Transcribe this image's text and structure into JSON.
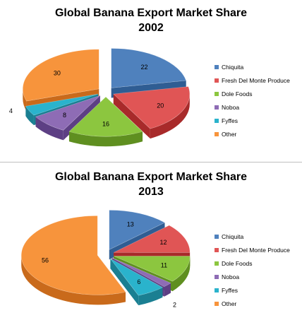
{
  "chart_data": [
    {
      "type": "pie",
      "title": "Global Banana Export Market Share",
      "subtitle": "2002",
      "categories": [
        "Chiquita",
        "Fresh Del Monte Produce",
        "Dole Foods",
        "Noboa",
        "Fyffes",
        "Other"
      ],
      "values": [
        22,
        20,
        16,
        8,
        4,
        30
      ],
      "legend_position": "right",
      "exploded": true,
      "three_d": true
    },
    {
      "type": "pie",
      "title": "Global Banana Export Market Share",
      "subtitle": "2013",
      "categories": [
        "Chiquita",
        "Fresh Del Monte Produce",
        "Dole Foods",
        "Noboa",
        "Fyffes",
        "Other"
      ],
      "values": [
        13,
        12,
        11,
        2,
        6,
        56
      ],
      "legend_position": "right",
      "exploded": true,
      "three_d": true
    }
  ],
  "colors": [
    "#4f81bd",
    "#e05555",
    "#8cc63f",
    "#8e6cb5",
    "#2ab3cc",
    "#f7943c"
  ],
  "side_colors": [
    "#2f5d93",
    "#a82a2a",
    "#5f8f20",
    "#5d3f84",
    "#1a7f92",
    "#c96a1b"
  ]
}
